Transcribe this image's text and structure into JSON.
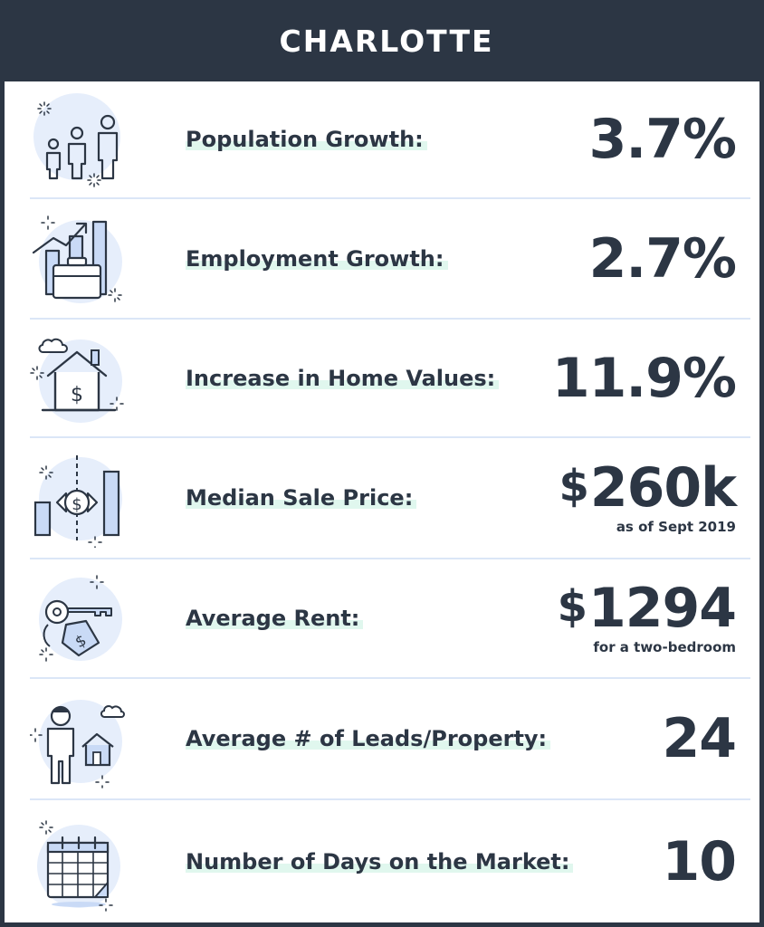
{
  "title": "CHARLOTTE",
  "colors": {
    "dark": "#2c3644",
    "divider": "#dbe6f7",
    "icon_fill": "#e6eefb",
    "label_highlight": "#e0f7ee"
  },
  "rows": [
    {
      "icon": "family-icon",
      "label": "Population Growth:",
      "value": "3.7%",
      "currency": "",
      "note": ""
    },
    {
      "icon": "employment-chart-briefcase-icon",
      "label": "Employment Growth:",
      "value": "2.7%",
      "currency": "",
      "note": ""
    },
    {
      "icon": "house-dollar-icon",
      "label": "Increase in Home Values:",
      "value": "11.9%",
      "currency": "",
      "note": ""
    },
    {
      "icon": "sale-price-candy-icon",
      "label": "Median Sale Price:",
      "value": "260k",
      "currency": "$",
      "note": "as  of Sept 2019"
    },
    {
      "icon": "key-tag-icon",
      "label": "Average Rent:",
      "value": "1294",
      "currency": "$",
      "note": "for a two-bedroom"
    },
    {
      "icon": "person-house-icon",
      "label": "Average # of Leads/Property:",
      "value": "24",
      "currency": "",
      "note": ""
    },
    {
      "icon": "calendar-icon",
      "label": "Number of Days on the Market:",
      "value": "10",
      "currency": "",
      "note": ""
    }
  ]
}
